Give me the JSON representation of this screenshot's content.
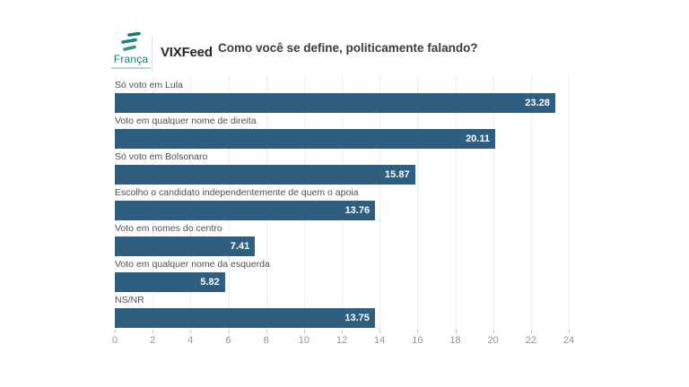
{
  "header": {
    "brand": "França",
    "partner": "VIXFeed"
  },
  "colors": {
    "bar": "#2e5f7f",
    "value_text": "#ffffff",
    "title_text": "#3c3c3c",
    "partner_text": "#262626",
    "brand_teal": "#0e7c74",
    "label_text": "#4f4f4f",
    "axis_text": "#949494",
    "gridline": "#ececec",
    "tick_mark": "#c9c9c9"
  },
  "chart_data": {
    "type": "bar",
    "orientation": "horizontal",
    "title": "Como você se define, politicamente falando?",
    "categories": [
      "Só voto em Lula",
      "Voto em qualquer nome de direita",
      "Só voto em Bolsonaro",
      "Escolho o candidato independentemente de quem o apoia",
      "Voto em nomes do centro",
      "Voto em qualquer nome da esquerda",
      "NS/NR"
    ],
    "values": [
      23.28,
      20.11,
      15.87,
      13.76,
      7.41,
      5.82,
      13.75
    ],
    "xlim": [
      0,
      24
    ],
    "x_ticks": [
      0,
      2,
      4,
      6,
      8,
      10,
      12,
      14,
      16,
      18,
      20,
      22,
      24
    ],
    "grid": true,
    "value_labels_position": "inside-end",
    "xlabel": "",
    "ylabel": "",
    "legend": "none"
  }
}
